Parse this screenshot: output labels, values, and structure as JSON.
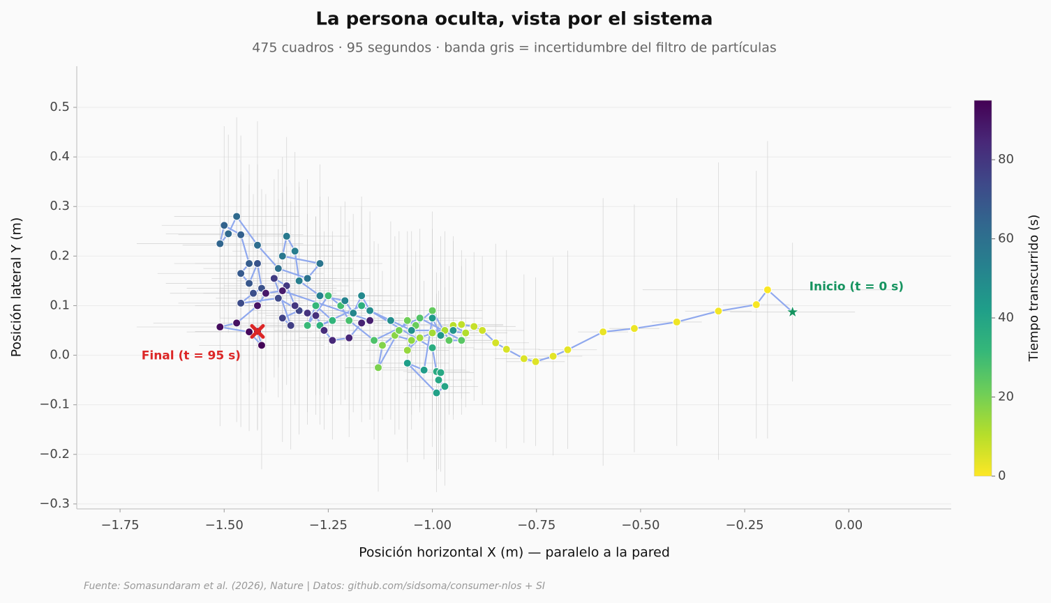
{
  "chart_data": {
    "type": "scatter",
    "title": "La persona oculta, vista por el sistema",
    "subtitle": "475 cuadros · 95 segundos · banda gris = incertidumbre del filtro de partículas",
    "x_label": "Posición horizontal X (m) — paralelo a la pared",
    "y_label": "Posición lateral Y (m)",
    "colorbar_label": "Tiempo transcurrido (s)",
    "source": "Fuente: Somasundaram et al. (2026), Nature | Datos: github.com/sidsoma/consumer-nlos + SI",
    "annotations": [
      "Inicio (t = 0 s)",
      "Final (t = 95 s)"
    ],
    "t": [
      0,
      0.5,
      1,
      1.5,
      2,
      2.5,
      3,
      3.5,
      4,
      4.5,
      5,
      5.5,
      6,
      7,
      8,
      9,
      10,
      11,
      12,
      13,
      14,
      15,
      16,
      17,
      18,
      19,
      20,
      21,
      22,
      23,
      24,
      25,
      26,
      27,
      28,
      29,
      30,
      31,
      32,
      33,
      34,
      35,
      36,
      37,
      38,
      39,
      40,
      41,
      42,
      43,
      44,
      45,
      46,
      47,
      48,
      49,
      50,
      51,
      52,
      53,
      54,
      55,
      56,
      57,
      58,
      59,
      60,
      61,
      62,
      63,
      64,
      65,
      66,
      67,
      68,
      69,
      70,
      71,
      72,
      73,
      74,
      75,
      76,
      77,
      78,
      79,
      80,
      81,
      82,
      83,
      84,
      85,
      86,
      87,
      88,
      89,
      90,
      91,
      92,
      93,
      94,
      95
    ],
    "x": [
      -0.135,
      -0.195,
      -0.222,
      -0.313,
      -0.413,
      -0.515,
      -0.59,
      -0.675,
      -0.71,
      -0.752,
      -0.78,
      -0.822,
      -0.848,
      -0.88,
      -0.9,
      -0.93,
      -0.95,
      -0.92,
      -0.97,
      -1.0,
      -1.03,
      -1.06,
      -1.05,
      -1.09,
      -1.12,
      -1.13,
      -1.08,
      -1.06,
      -1.04,
      -1.0,
      -0.96,
      -0.93,
      -1.03,
      -1.14,
      -1.2,
      -1.22,
      -1.25,
      -1.3,
      -1.28,
      -1.24,
      -1.27,
      -1.17,
      -1.0,
      -0.99,
      -0.98,
      -0.985,
      -0.97,
      -0.99,
      -1.06,
      -1.02,
      -1.0,
      -0.98,
      -0.95,
      -1.05,
      -1.1,
      -1.15,
      -1.17,
      -1.19,
      -1.21,
      -1.27,
      -1.32,
      -1.33,
      -1.35,
      -1.36,
      -1.27,
      -1.3,
      -1.37,
      -1.42,
      -1.47,
      -1.49,
      -1.51,
      -1.5,
      -1.46,
      -1.44,
      -1.46,
      -1.44,
      -1.42,
      -1.41,
      -1.43,
      -1.46,
      -1.37,
      -1.32,
      -1.36,
      -1.34,
      -1.38,
      -1.35,
      -1.33,
      -1.3,
      -1.28,
      -1.26,
      -1.24,
      -1.2,
      -1.17,
      -1.15,
      -1.36,
      -1.4,
      -1.42,
      -1.47,
      -1.51,
      -1.44,
      -1.41,
      -1.42
    ],
    "y": [
      0.087,
      0.132,
      0.102,
      0.089,
      0.067,
      0.054,
      0.047,
      0.011,
      -0.002,
      -0.013,
      -0.007,
      0.012,
      0.025,
      0.05,
      0.058,
      0.062,
      0.06,
      0.045,
      0.05,
      0.045,
      0.035,
      0.01,
      0.03,
      0.04,
      0.02,
      -0.025,
      0.05,
      0.07,
      0.06,
      0.09,
      0.03,
      0.03,
      0.075,
      0.03,
      0.07,
      0.1,
      0.12,
      0.06,
      0.1,
      0.07,
      0.06,
      0.1,
      0.015,
      -0.033,
      -0.035,
      -0.05,
      -0.063,
      -0.076,
      -0.016,
      -0.03,
      0.075,
      0.04,
      0.05,
      0.05,
      0.07,
      0.09,
      0.12,
      0.085,
      0.11,
      0.12,
      0.15,
      0.21,
      0.24,
      0.2,
      0.185,
      0.155,
      0.175,
      0.222,
      0.28,
      0.245,
      0.225,
      0.262,
      0.243,
      0.185,
      0.165,
      0.145,
      0.185,
      0.135,
      0.125,
      0.105,
      0.115,
      0.09,
      0.075,
      0.06,
      0.155,
      0.14,
      0.1,
      0.085,
      0.08,
      0.05,
      0.03,
      0.035,
      0.065,
      0.07,
      0.13,
      0.125,
      0.1,
      0.065,
      0.057,
      0.047,
      0.02,
      0.048
    ],
    "x_err": [
      0.15,
      0.3,
      0.08,
      0.08,
      0.06,
      0.06,
      0.06,
      0.07,
      0.07,
      0.07,
      0.07,
      0.08,
      0.08,
      0.1,
      0.1,
      0.1,
      0.12,
      0.1,
      0.12,
      0.12,
      0.12,
      0.1,
      0.1,
      0.12,
      0.1,
      0.08,
      0.12,
      0.12,
      0.1,
      0.12,
      0.1,
      0.1,
      0.12,
      0.1,
      0.12,
      0.12,
      0.15,
      0.12,
      0.12,
      0.12,
      0.12,
      0.12,
      0.1,
      0.08,
      0.08,
      0.08,
      0.08,
      0.08,
      0.1,
      0.1,
      0.12,
      0.12,
      0.1,
      0.12,
      0.12,
      0.12,
      0.12,
      0.12,
      0.12,
      0.15,
      0.15,
      0.15,
      0.15,
      0.15,
      0.15,
      0.15,
      0.18,
      0.18,
      0.15,
      0.15,
      0.2,
      0.15,
      0.15,
      0.18,
      0.2,
      0.2,
      0.15,
      0.18,
      0.2,
      0.15,
      0.15,
      0.12,
      0.15,
      0.15,
      0.15,
      0.15,
      0.12,
      0.12,
      0.12,
      0.12,
      0.12,
      0.12,
      0.12,
      0.12,
      0.15,
      0.15,
      0.15,
      0.2,
      0.2,
      0.15,
      0.15,
      0.15
    ],
    "y_err": [
      0.14,
      0.3,
      0.27,
      0.3,
      0.25,
      0.25,
      0.27,
      0.2,
      0.2,
      0.17,
      0.17,
      0.2,
      0.2,
      0.15,
      0.15,
      0.15,
      0.18,
      0.15,
      0.2,
      0.18,
      0.15,
      0.2,
      0.15,
      0.2,
      0.15,
      0.25,
      0.2,
      0.18,
      0.15,
      0.2,
      0.15,
      0.15,
      0.18,
      0.2,
      0.2,
      0.2,
      0.2,
      0.2,
      0.18,
      0.18,
      0.2,
      0.2,
      0.2,
      0.2,
      0.2,
      0.18,
      0.2,
      0.2,
      0.2,
      0.18,
      0.18,
      0.2,
      0.18,
      0.2,
      0.2,
      0.2,
      0.2,
      0.2,
      0.2,
      0.2,
      0.2,
      0.2,
      0.2,
      0.2,
      0.2,
      0.2,
      0.2,
      0.25,
      0.2,
      0.2,
      0.15,
      0.2,
      0.2,
      0.2,
      0.2,
      0.2,
      0.2,
      0.2,
      0.2,
      0.25,
      0.2,
      0.25,
      0.25,
      0.25,
      0.2,
      0.2,
      0.2,
      0.2,
      0.2,
      0.2,
      0.2,
      0.2,
      0.2,
      0.2,
      0.2,
      0.2,
      0.25,
      0.2,
      0.2,
      0.2,
      0.25,
      0.2
    ],
    "xlim": [
      -1.854,
      0.246
    ],
    "ylim": [
      -0.31,
      0.583
    ],
    "xticks": [
      {
        "value": -1.75,
        "label": "−1.75"
      },
      {
        "value": -1.5,
        "label": "−1.50"
      },
      {
        "value": -1.25,
        "label": "−1.25"
      },
      {
        "value": -1.0,
        "label": "−1.00"
      },
      {
        "value": -0.75,
        "label": "−0.75"
      },
      {
        "value": -0.5,
        "label": "−0.50"
      },
      {
        "value": -0.25,
        "label": "−0.25"
      },
      {
        "value": 0,
        "label": "0.00"
      }
    ],
    "yticks": [
      {
        "value": -0.3,
        "label": "−0.3"
      },
      {
        "value": -0.2,
        "label": "−0.2"
      },
      {
        "value": -0.1,
        "label": "−0.1"
      },
      {
        "value": 0,
        "label": "0.0"
      },
      0.1,
      0.2,
      0.3,
      0.4,
      0.5
    ],
    "clim": [
      0,
      95
    ],
    "cticks": [
      0,
      20,
      40,
      60,
      80
    ],
    "colormap": [
      "#fde725",
      "#b5de2b",
      "#6ece58",
      "#35b779",
      "#1f9e89",
      "#26828e",
      "#31688e",
      "#3e4989",
      "#482878",
      "#440154"
    ],
    "line_color": "#8fa8ee",
    "start_color": "#15935f",
    "end_color": "#dc2626",
    "grid": true
  }
}
